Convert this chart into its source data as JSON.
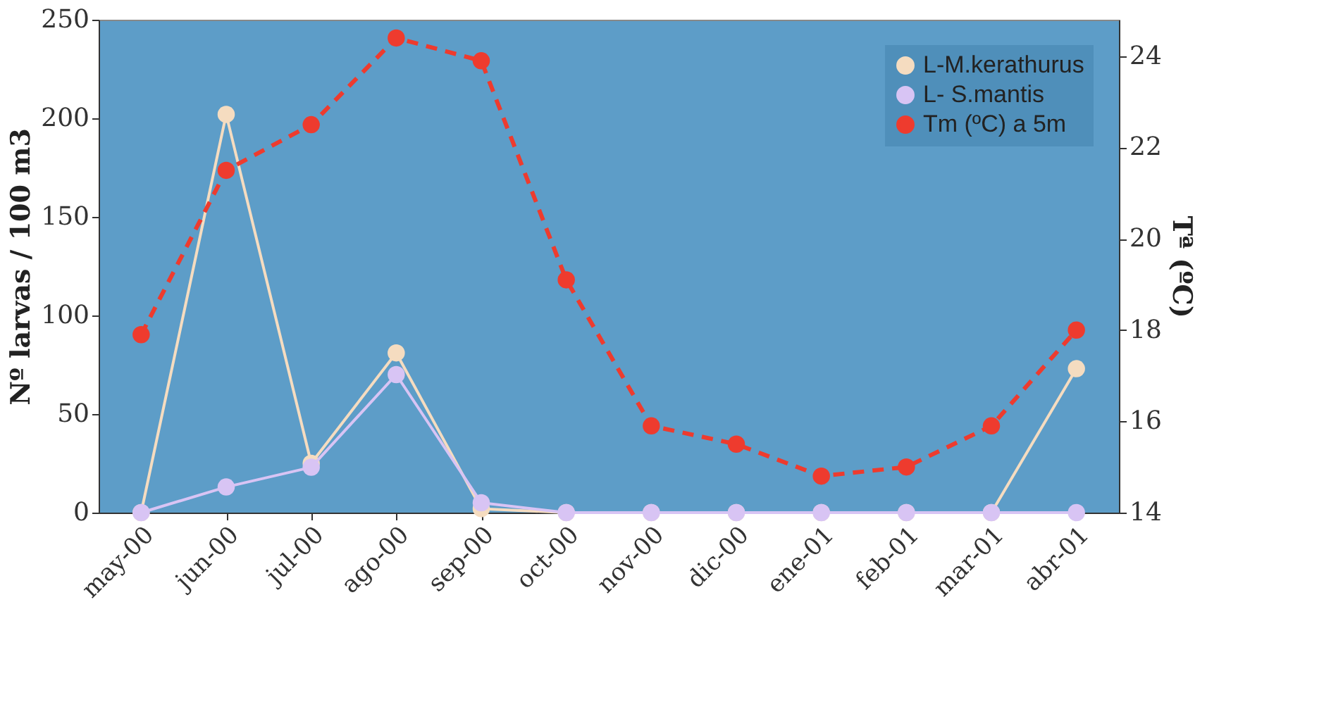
{
  "chart_data": {
    "type": "line",
    "ylabel": "Nº larvas / 100 m3",
    "y2label": "Tª (ºC)",
    "categories": [
      "may-00",
      "jun-00",
      "jul-00",
      "ago-00",
      "sep-00",
      "oct-00",
      "nov-00",
      "dic-00",
      "ene-01",
      "feb-01",
      "mar-01",
      "abr-01"
    ],
    "series": [
      {
        "name": "L-M.kerathurus",
        "color": "#f5dcc0",
        "values": [
          0,
          202,
          25,
          81,
          2,
          0,
          0,
          0,
          0,
          0,
          0,
          73
        ]
      },
      {
        "name": "L- S.mantis",
        "color": "#d8c4f4",
        "values": [
          0,
          13,
          23,
          70,
          5,
          0,
          0,
          0,
          0,
          0,
          0,
          0
        ]
      },
      {
        "name": "Tm (ºC) a 5m",
        "color": "#ee3b2e",
        "axis": "y2",
        "line_style": "dashed",
        "values": [
          17.9,
          21.5,
          22.5,
          24.4,
          23.9,
          19.1,
          15.9,
          15.5,
          14.8,
          15.0,
          15.9,
          18.0
        ]
      }
    ],
    "ylim": [
      0,
      250
    ],
    "yticks": [
      0,
      50,
      100,
      150,
      200,
      250
    ],
    "y2lim": [
      14,
      24.8
    ],
    "y2ticks": [
      14,
      16,
      18,
      20,
      22,
      24
    ],
    "marker": "circle",
    "line_style": "solid",
    "grid": false,
    "legend": "top right"
  }
}
